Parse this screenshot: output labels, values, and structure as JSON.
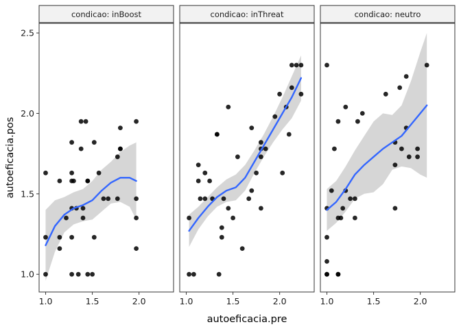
{
  "chart_data": {
    "type": "scatter",
    "xlabel": "autoeficacia.pre",
    "ylabel": "autoeficacia.pos",
    "xlim": [
      0.93,
      2.37
    ],
    "ylim": [
      0.89,
      2.56
    ],
    "x_ticks": [
      {
        "value": 1.0,
        "label": "1.0"
      },
      {
        "value": 1.5,
        "label": "1.5"
      },
      {
        "value": 2.0,
        "label": "2.0"
      }
    ],
    "y_ticks": [
      {
        "value": 1.0,
        "label": "1.0"
      },
      {
        "value": 1.5,
        "label": "1.5"
      },
      {
        "value": 2.0,
        "label": "2.0"
      },
      {
        "value": 2.5,
        "label": "2.5"
      }
    ],
    "grid": false,
    "facets": [
      {
        "label": "condicao: inBoost",
        "points": [
          [
            1.0,
            1.63
          ],
          [
            1.0,
            1.23
          ],
          [
            1.0,
            1.0
          ],
          [
            1.15,
            1.58
          ],
          [
            1.15,
            1.23
          ],
          [
            1.15,
            1.16
          ],
          [
            1.22,
            1.35
          ],
          [
            1.28,
            1.82
          ],
          [
            1.28,
            1.63
          ],
          [
            1.28,
            1.58
          ],
          [
            1.28,
            1.41
          ],
          [
            1.28,
            1.23
          ],
          [
            1.28,
            1.0
          ],
          [
            1.3,
            1.58
          ],
          [
            1.33,
            1.41
          ],
          [
            1.35,
            1.0
          ],
          [
            1.38,
            1.95
          ],
          [
            1.38,
            1.78
          ],
          [
            1.4,
            1.41
          ],
          [
            1.4,
            1.35
          ],
          [
            1.43,
            1.95
          ],
          [
            1.45,
            1.58
          ],
          [
            1.45,
            1.58
          ],
          [
            1.45,
            1.0
          ],
          [
            1.5,
            1.0
          ],
          [
            1.52,
            1.82
          ],
          [
            1.52,
            1.23
          ],
          [
            1.57,
            1.63
          ],
          [
            1.62,
            1.47
          ],
          [
            1.67,
            1.47
          ],
          [
            1.77,
            1.47
          ],
          [
            1.77,
            1.73
          ],
          [
            1.8,
            1.91
          ],
          [
            1.8,
            1.78
          ],
          [
            1.8,
            1.78
          ],
          [
            1.97,
            1.95
          ],
          [
            1.97,
            1.47
          ],
          [
            1.97,
            1.35
          ],
          [
            1.97,
            1.16
          ]
        ],
        "smooth": [
          [
            1.0,
            1.18
          ],
          [
            1.1,
            1.3
          ],
          [
            1.2,
            1.37
          ],
          [
            1.3,
            1.41
          ],
          [
            1.4,
            1.43
          ],
          [
            1.5,
            1.46
          ],
          [
            1.6,
            1.52
          ],
          [
            1.7,
            1.57
          ],
          [
            1.8,
            1.6
          ],
          [
            1.9,
            1.6
          ],
          [
            1.97,
            1.58
          ]
        ],
        "band_upper": [
          [
            1.0,
            1.4
          ],
          [
            1.1,
            1.46
          ],
          [
            1.2,
            1.48
          ],
          [
            1.3,
            1.51
          ],
          [
            1.4,
            1.53
          ],
          [
            1.5,
            1.58
          ],
          [
            1.6,
            1.65
          ],
          [
            1.7,
            1.7
          ],
          [
            1.8,
            1.76
          ],
          [
            1.9,
            1.8
          ],
          [
            1.97,
            1.82
          ]
        ],
        "band_lower": [
          [
            1.0,
            0.96
          ],
          [
            1.1,
            1.14
          ],
          [
            1.2,
            1.26
          ],
          [
            1.3,
            1.31
          ],
          [
            1.4,
            1.33
          ],
          [
            1.5,
            1.34
          ],
          [
            1.6,
            1.39
          ],
          [
            1.7,
            1.44
          ],
          [
            1.8,
            1.45
          ],
          [
            1.9,
            1.42
          ],
          [
            1.97,
            1.34
          ]
        ]
      },
      {
        "label": "condicao: inThreat",
        "points": [
          [
            1.03,
            1.35
          ],
          [
            1.03,
            1.0
          ],
          [
            1.08,
            1.0
          ],
          [
            1.13,
            1.58
          ],
          [
            1.13,
            1.68
          ],
          [
            1.15,
            1.47
          ],
          [
            1.2,
            1.63
          ],
          [
            1.2,
            1.47
          ],
          [
            1.25,
            1.58
          ],
          [
            1.28,
            1.47
          ],
          [
            1.33,
            1.87
          ],
          [
            1.33,
            1.87
          ],
          [
            1.35,
            1.0
          ],
          [
            1.38,
            1.29
          ],
          [
            1.38,
            1.23
          ],
          [
            1.4,
            1.47
          ],
          [
            1.45,
            2.04
          ],
          [
            1.45,
            1.41
          ],
          [
            1.5,
            1.35
          ],
          [
            1.55,
            1.73
          ],
          [
            1.6,
            1.16
          ],
          [
            1.67,
            1.47
          ],
          [
            1.7,
            1.52
          ],
          [
            1.7,
            1.91
          ],
          [
            1.75,
            1.63
          ],
          [
            1.8,
            1.73
          ],
          [
            1.8,
            1.82
          ],
          [
            1.8,
            1.78
          ],
          [
            1.8,
            1.41
          ],
          [
            1.85,
            1.78
          ],
          [
            1.95,
            1.98
          ],
          [
            2.0,
            2.12
          ],
          [
            2.03,
            1.63
          ],
          [
            2.07,
            2.04
          ],
          [
            2.1,
            1.87
          ],
          [
            2.13,
            2.3
          ],
          [
            2.13,
            2.16
          ],
          [
            2.18,
            2.3
          ],
          [
            2.23,
            2.3
          ],
          [
            2.23,
            2.12
          ]
        ],
        "smooth": [
          [
            1.03,
            1.27
          ],
          [
            1.13,
            1.35
          ],
          [
            1.23,
            1.42
          ],
          [
            1.33,
            1.48
          ],
          [
            1.43,
            1.52
          ],
          [
            1.53,
            1.54
          ],
          [
            1.63,
            1.6
          ],
          [
            1.73,
            1.7
          ],
          [
            1.83,
            1.8
          ],
          [
            1.93,
            1.9
          ],
          [
            2.03,
            2.0
          ],
          [
            2.13,
            2.1
          ],
          [
            2.23,
            2.22
          ]
        ],
        "band_upper": [
          [
            1.03,
            1.37
          ],
          [
            1.13,
            1.42
          ],
          [
            1.23,
            1.48
          ],
          [
            1.33,
            1.54
          ],
          [
            1.43,
            1.59
          ],
          [
            1.53,
            1.62
          ],
          [
            1.63,
            1.68
          ],
          [
            1.73,
            1.77
          ],
          [
            1.83,
            1.87
          ],
          [
            1.93,
            1.98
          ],
          [
            2.03,
            2.1
          ],
          [
            2.13,
            2.23
          ],
          [
            2.23,
            2.36
          ]
        ],
        "band_lower": [
          [
            1.03,
            1.17
          ],
          [
            1.13,
            1.28
          ],
          [
            1.23,
            1.36
          ],
          [
            1.33,
            1.42
          ],
          [
            1.43,
            1.45
          ],
          [
            1.53,
            1.46
          ],
          [
            1.63,
            1.52
          ],
          [
            1.73,
            1.63
          ],
          [
            1.83,
            1.73
          ],
          [
            1.93,
            1.82
          ],
          [
            2.03,
            1.9
          ],
          [
            2.13,
            1.97
          ],
          [
            2.23,
            2.08
          ]
        ]
      },
      {
        "label": "condicao: neutro",
        "points": [
          [
            1.0,
            2.3
          ],
          [
            1.0,
            1.41
          ],
          [
            1.0,
            1.23
          ],
          [
            1.0,
            1.08
          ],
          [
            1.0,
            1.0
          ],
          [
            1.0,
            1.0
          ],
          [
            1.05,
            1.52
          ],
          [
            1.08,
            1.78
          ],
          [
            1.12,
            1.35
          ],
          [
            1.12,
            1.0
          ],
          [
            1.12,
            1.0
          ],
          [
            1.12,
            1.95
          ],
          [
            1.15,
            1.35
          ],
          [
            1.17,
            1.41
          ],
          [
            1.2,
            1.52
          ],
          [
            1.2,
            2.04
          ],
          [
            1.25,
            1.47
          ],
          [
            1.3,
            1.47
          ],
          [
            1.3,
            1.35
          ],
          [
            1.33,
            1.95
          ],
          [
            1.38,
            2.0
          ],
          [
            1.63,
            2.12
          ],
          [
            1.73,
            1.68
          ],
          [
            1.73,
            1.41
          ],
          [
            1.73,
            1.82
          ],
          [
            1.78,
            2.16
          ],
          [
            1.8,
            1.78
          ],
          [
            1.85,
            1.91
          ],
          [
            1.85,
            2.23
          ],
          [
            1.88,
            1.73
          ],
          [
            1.97,
            1.78
          ],
          [
            1.97,
            1.73
          ],
          [
            2.07,
            2.3
          ]
        ],
        "smooth": [
          [
            1.0,
            1.4
          ],
          [
            1.1,
            1.45
          ],
          [
            1.2,
            1.53
          ],
          [
            1.3,
            1.62
          ],
          [
            1.4,
            1.68
          ],
          [
            1.5,
            1.73
          ],
          [
            1.6,
            1.78
          ],
          [
            1.7,
            1.82
          ],
          [
            1.8,
            1.86
          ],
          [
            1.9,
            1.93
          ],
          [
            2.0,
            2.0
          ],
          [
            2.07,
            2.05
          ]
        ],
        "band_upper": [
          [
            1.0,
            1.53
          ],
          [
            1.1,
            1.58
          ],
          [
            1.2,
            1.67
          ],
          [
            1.3,
            1.77
          ],
          [
            1.4,
            1.86
          ],
          [
            1.5,
            1.95
          ],
          [
            1.6,
            2.0
          ],
          [
            1.7,
            1.99
          ],
          [
            1.8,
            2.05
          ],
          [
            1.9,
            2.2
          ],
          [
            2.0,
            2.38
          ],
          [
            2.07,
            2.5
          ]
        ],
        "band_lower": [
          [
            1.0,
            1.27
          ],
          [
            1.1,
            1.32
          ],
          [
            1.2,
            1.39
          ],
          [
            1.3,
            1.47
          ],
          [
            1.4,
            1.5
          ],
          [
            1.5,
            1.51
          ],
          [
            1.6,
            1.56
          ],
          [
            1.7,
            1.65
          ],
          [
            1.8,
            1.67
          ],
          [
            1.9,
            1.66
          ],
          [
            2.0,
            1.62
          ],
          [
            2.07,
            1.6
          ]
        ]
      }
    ]
  }
}
